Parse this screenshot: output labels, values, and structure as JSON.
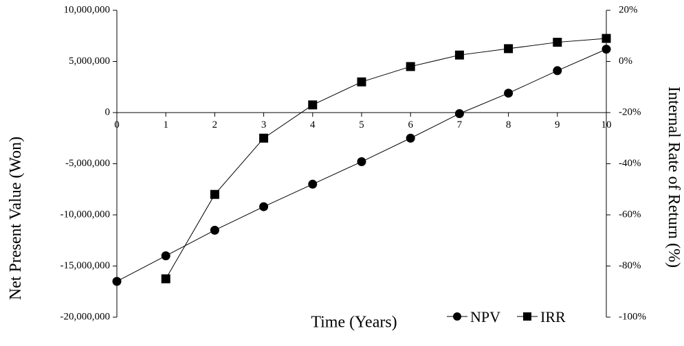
{
  "chart_data": {
    "type": "line",
    "xlabel": "Time (Years)",
    "ylabel_left": "Net Present Value (Won)",
    "ylabel_right": "Internal Rate of Return (%)",
    "x": [
      0,
      1,
      2,
      3,
      4,
      5,
      6,
      7,
      8,
      9,
      10
    ],
    "x_tick_labels": [
      "0",
      "1",
      "2",
      "3",
      "4",
      "5",
      "6",
      "7",
      "8",
      "9",
      "10"
    ],
    "ylim_left": [
      -20000000,
      10000000
    ],
    "y_left_tick_labels": [
      "10,000,000",
      "5,000,000",
      "0",
      "-5,000,000",
      "-10,000,000",
      "-15,000,000",
      "-20,000,000"
    ],
    "ylim_right": [
      -100,
      20
    ],
    "y_right_tick_labels": [
      "20%",
      "0%",
      "-20%",
      "-40%",
      "-60%",
      "-80%",
      "-100%"
    ],
    "grid": false,
    "legend_position": "bottom-right",
    "series": [
      {
        "name": "NPV",
        "axis": "left",
        "marker": "circle",
        "x": [
          0,
          1,
          2,
          3,
          4,
          5,
          6,
          7,
          8,
          9,
          10
        ],
        "values": [
          -16500000,
          -14000000,
          -11500000,
          -9200000,
          -7000000,
          -4800000,
          -2500000,
          -100000,
          1900000,
          4100000,
          6200000
        ]
      },
      {
        "name": "IRR",
        "axis": "right",
        "marker": "square",
        "x": [
          1,
          2,
          3,
          4,
          5,
          6,
          7,
          8,
          9,
          10
        ],
        "values": [
          -85,
          -52,
          -30,
          -17,
          -8,
          -2,
          2.5,
          5,
          7.5,
          9
        ]
      }
    ]
  }
}
